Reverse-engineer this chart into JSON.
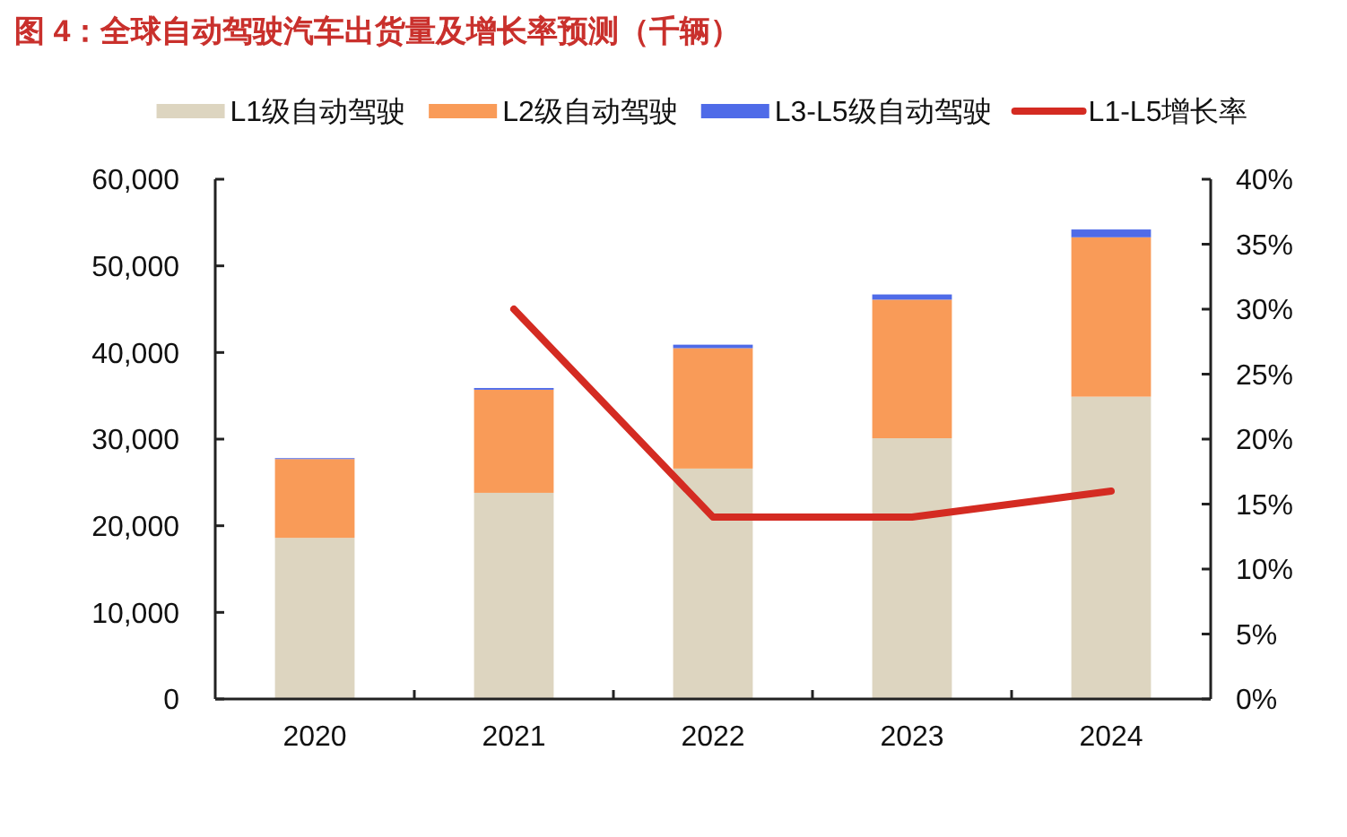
{
  "chart_data": {
    "type": "bar",
    "title": "图 4：全球自动驾驶汽车出货量及增长率预测（千辆）",
    "categories": [
      "2020",
      "2021",
      "2022",
      "2023",
      "2024"
    ],
    "stacked": true,
    "series": [
      {
        "name": "L1级自动驾驶",
        "color": "#ddd5c0",
        "values": [
          18600,
          23800,
          26600,
          30100,
          34900
        ]
      },
      {
        "name": "L2级自动驾驶",
        "color": "#f99b58",
        "values": [
          9100,
          11900,
          13900,
          16000,
          18400
        ]
      },
      {
        "name": "L3-L5级自动驾驶",
        "color": "#4f6be8",
        "values": [
          100,
          200,
          400,
          600,
          900
        ]
      },
      {
        "name": "L1-L5增长率",
        "type": "line",
        "axis": "y2",
        "color": "#d42b22",
        "values": [
          null,
          30,
          14,
          14,
          16
        ]
      }
    ],
    "ylim": [
      0,
      60000
    ],
    "yticks": [
      0,
      {
        "value": 10000,
        "label": "10,000"
      },
      {
        "value": 20000,
        "label": "20,000"
      },
      {
        "value": 30000,
        "label": "30,000"
      },
      {
        "value": 40000,
        "label": "40,000"
      },
      {
        "value": 50000,
        "label": "50,000"
      },
      {
        "value": 60000,
        "label": "60,000"
      }
    ],
    "y2lim": [
      0,
      40
    ],
    "y2ticks": [
      {
        "value": 0,
        "label": "0%"
      },
      {
        "value": 5,
        "label": "5%"
      },
      {
        "value": 10,
        "label": "10%"
      },
      {
        "value": 15,
        "label": "15%"
      },
      {
        "value": 20,
        "label": "20%"
      },
      {
        "value": 25,
        "label": "25%"
      },
      {
        "value": 30,
        "label": "30%"
      },
      {
        "value": 35,
        "label": "35%"
      },
      {
        "value": 40,
        "label": "40%"
      }
    ],
    "legend": "top"
  }
}
